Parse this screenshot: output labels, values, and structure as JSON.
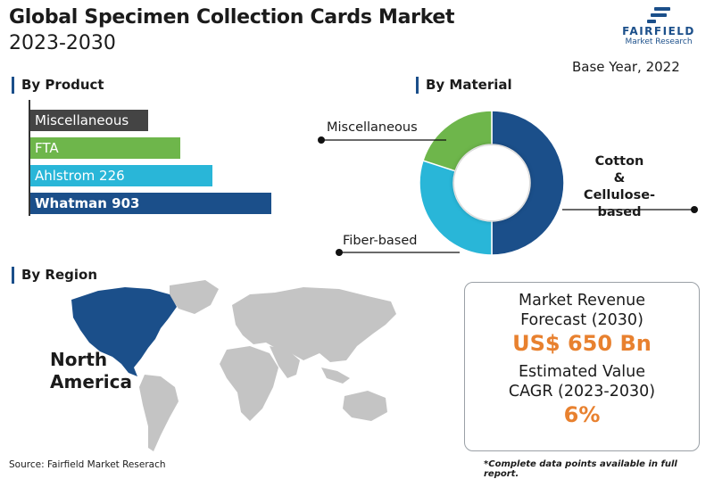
{
  "header": {
    "title": "Global Specimen Collection Cards Market",
    "subtitle": "2023-2030",
    "base_year": "Base Year, 2022"
  },
  "logo": {
    "name": "FAIRFIELD",
    "tagline": "Market Research"
  },
  "sections": {
    "product": "By Product",
    "material": "By Material",
    "region": "By Region"
  },
  "chart_data": [
    {
      "type": "bar",
      "orientation": "horizontal",
      "title": "By Product",
      "categories": [
        "Miscellaneous",
        "FTA",
        "Ahlstrom 226",
        "Whatman 903"
      ],
      "values": [
        22,
        28,
        34,
        45
      ],
      "colors": [
        "#444444",
        "#6eb64b",
        "#29b6d8",
        "#1b4f8a"
      ],
      "value_scale": "relative (no axis printed)"
    },
    {
      "type": "pie",
      "subtype": "donut",
      "title": "By Material",
      "labels": [
        "Cotton & Cellulose-based",
        "Fiber-based",
        "Miscellaneous"
      ],
      "values": [
        50,
        30,
        20
      ],
      "colors": [
        "#1b4f8a",
        "#29b6d8",
        "#6eb64b"
      ],
      "label_lines": {
        "cotton_1": "Cotton",
        "cotton_2": "&",
        "cotton_3": "Cellulose-based"
      }
    }
  ],
  "region": {
    "highlight": [
      "North",
      "America"
    ],
    "highlight_color": "#1b4f8a",
    "base_color": "#c4c4c4"
  },
  "forecast": {
    "revenue_label_1": "Market Revenue",
    "revenue_label_2": "Forecast (2030)",
    "revenue_value": "US$ 650 Bn",
    "cagr_label_1": "Estimated Value",
    "cagr_label_2": "CAGR (2023-2030)",
    "cagr_value": "6%",
    "accent": "#e8812f"
  },
  "footer": {
    "source": "Source: Fairfield Market Reserach",
    "note": "*Complete data points available in full report."
  }
}
